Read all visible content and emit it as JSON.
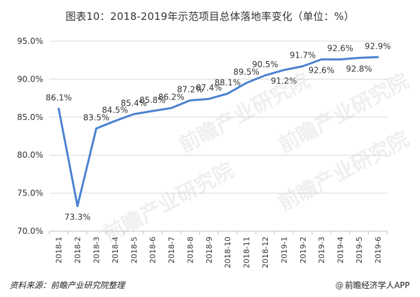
{
  "title": "图表10：2018-2019年示范项目总体落地率变化（单位：%）",
  "footer": {
    "source": "资料来源：前瞻产业研究院整理",
    "brand": "前瞻经济学人APP",
    "brand_icon": "at-sign-icon"
  },
  "watermark": "前瞻产业研究院",
  "colors": {
    "line": "#4a82d0",
    "grid": "#d9d9d9",
    "text": "#333333"
  },
  "chart_data": {
    "type": "line",
    "categories": [
      "2018-1",
      "2018-2",
      "2018-3",
      "2018-4",
      "2018-5",
      "2018-6",
      "2018-7",
      "2018-8",
      "2018-9",
      "2018-10",
      "2018-11",
      "2018-12",
      "2019-1",
      "2019-2",
      "2019-3",
      "2019-4",
      "2019-5",
      "2019-6"
    ],
    "values": [
      86.1,
      73.3,
      83.5,
      84.5,
      85.4,
      85.8,
      86.2,
      87.2,
      87.4,
      88.1,
      89.5,
      90.5,
      91.2,
      91.7,
      92.6,
      92.6,
      92.8,
      92.9
    ],
    "labels": [
      "86.1%",
      "73.3%",
      "83.5%",
      "84.5%",
      "85.4%",
      "85.8%",
      "86.2%",
      "87.2%",
      "87.4%",
      "88.1%",
      "89.5%",
      "90.5%",
      "91.2%",
      "91.7%",
      "92.6%",
      "92.6%",
      "92.8%",
      "92.9%"
    ],
    "label_position": [
      "above",
      "below",
      "above",
      "above",
      "above",
      "above",
      "above",
      "above",
      "above",
      "above",
      "above",
      "above",
      "below",
      "above",
      "below",
      "above",
      "below",
      "above"
    ],
    "ylim": [
      70,
      95
    ],
    "yticks": [
      70,
      75,
      80,
      85,
      90,
      95
    ],
    "ytick_labels": [
      "70.0%",
      "75.0%",
      "80.0%",
      "85.0%",
      "90.0%",
      "95.0%"
    ],
    "grid": true,
    "xlabel": "",
    "ylabel": ""
  }
}
